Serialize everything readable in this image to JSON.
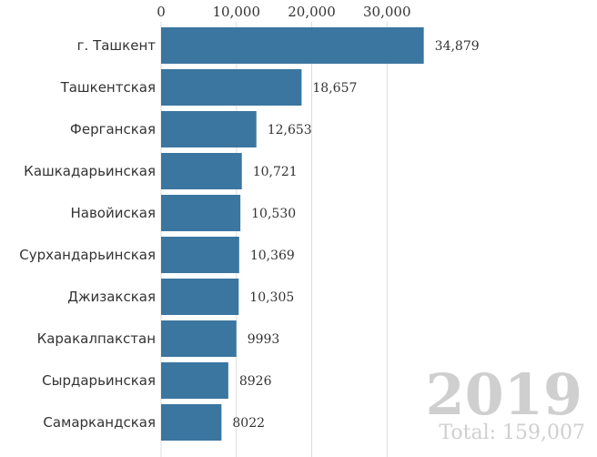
{
  "chart_data": {
    "type": "bar",
    "orientation": "horizontal",
    "categories": [
      "г. Ташкент",
      "Ташкентская",
      "Ферганская",
      "Кашкадарьинская",
      "Навойиская",
      "Сурхандарьинская",
      "Джизакская",
      "Каракалпакстан",
      "Сырдарьинская",
      "Самаркандская"
    ],
    "values": [
      34879,
      18657,
      12653,
      10721,
      10530,
      10369,
      10305,
      9993,
      8926,
      8022
    ],
    "value_labels": [
      "34,879",
      "18,657",
      "12,653",
      "10,721",
      "10,530",
      "10,369",
      "10,305",
      "9993",
      "8926",
      "8022"
    ],
    "x_ticks": [
      0,
      10000,
      20000,
      30000
    ],
    "x_tick_labels": [
      "0",
      "10,000",
      "20,000",
      "30,000"
    ],
    "xlim": [
      0,
      40000
    ],
    "axis_position": "top",
    "grid": true,
    "bar_color": "#3b76a0",
    "year": "2019",
    "total_label": "Total: 159,007"
  }
}
